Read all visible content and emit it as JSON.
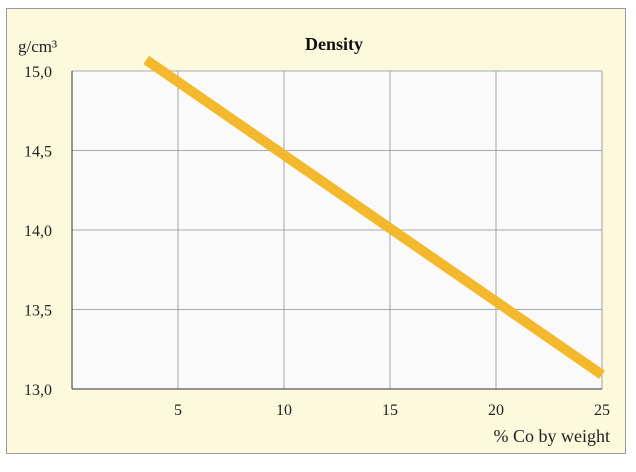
{
  "chart_data": {
    "type": "line",
    "title": "Density",
    "ylabel": "g/cm³",
    "xlabel": "% Co by weight",
    "xlim": [
      0,
      25
    ],
    "ylim": [
      13.0,
      15.0
    ],
    "x_ticks": [
      "5",
      "10",
      "15",
      "20",
      "25"
    ],
    "y_ticks": [
      "13,0",
      "13,5",
      "14,0",
      "14,5",
      "15,0"
    ],
    "grid": true,
    "series": [
      {
        "x": [
          3.5,
          25
        ],
        "y": [
          15.07,
          13.09
        ]
      }
    ],
    "colors": {
      "line": "#f4b82c",
      "frame_background": "#fdf9dd",
      "plot_background": "#fafafa",
      "grid": "#8a8f99"
    }
  }
}
